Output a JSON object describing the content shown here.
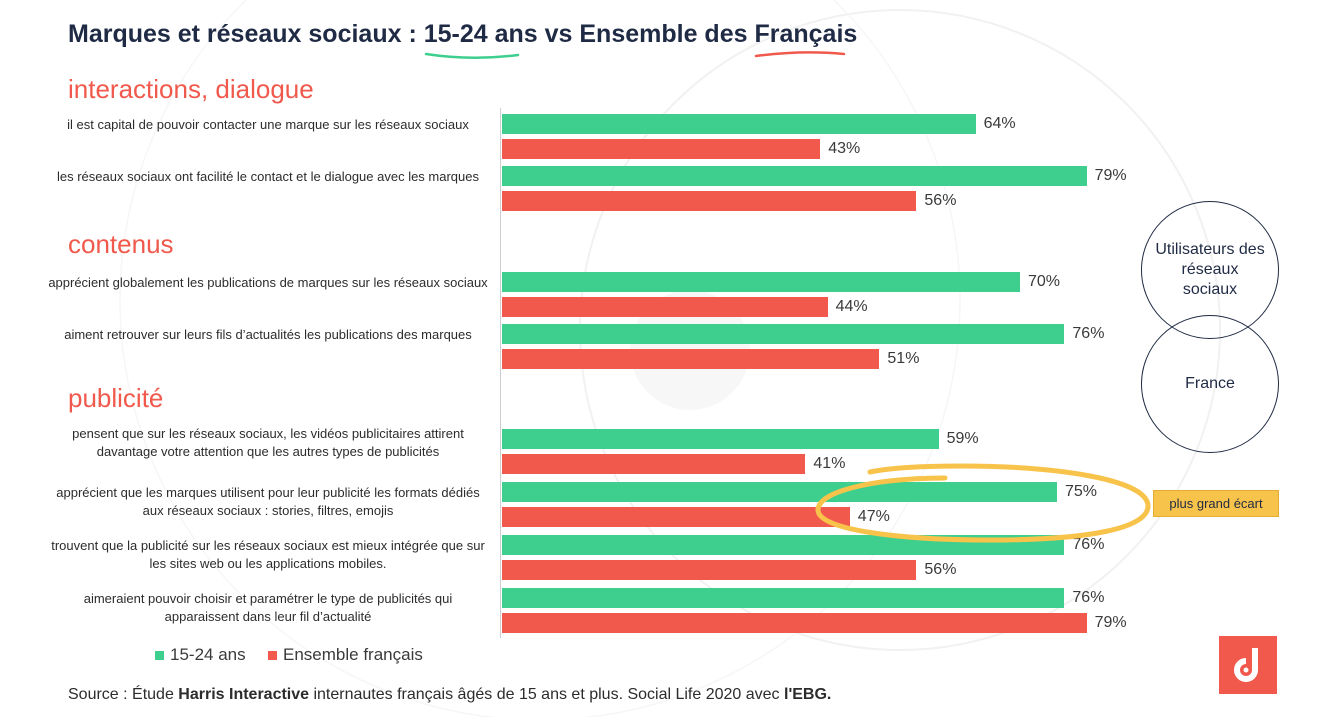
{
  "title": {
    "prefix": "Marques et réseaux sociaux  : ",
    "highlight1": "15-24 ans",
    "middle": " vs Ensemble des ",
    "highlight2": "Français"
  },
  "sections": {
    "s1": "interactions, dialogue",
    "s2": "contenus",
    "s3": "publicité"
  },
  "chart_data": {
    "type": "bar",
    "orientation": "horizontal",
    "categories": [
      "il est capital de pouvoir contacter une marque sur les réseaux sociaux",
      "les réseaux sociaux ont facilité le contact et le dialogue avec les marques",
      "apprécient globalement les publications de marques sur les réseaux sociaux",
      "aiment retrouver sur leurs fils d’actualités les publications des marques",
      "pensent que sur les réseaux sociaux, les vidéos publicitaires attirent davantage votre attention que les autres types de publicités",
      "apprécient que les marques utilisent pour leur publicité les formats dédiés aux réseaux sociaux : stories, filtres, emojis",
      "trouvent que la publicité sur les réseaux sociaux est mieux intégrée que sur les sites web ou les applications mobiles.",
      "aimeraient pouvoir choisir et paramétrer le type de publicités qui apparaissent dans leur fil d’actualité"
    ],
    "series": [
      {
        "name": "15-24 ans",
        "color": "#3ecf8e",
        "values": [
          64,
          79,
          70,
          76,
          59,
          75,
          76,
          76
        ]
      },
      {
        "name": "Ensemble français",
        "color": "#f0594c",
        "values": [
          43,
          56,
          44,
          51,
          41,
          47,
          56,
          79
        ]
      }
    ],
    "value_labels": {
      "green": [
        "64%",
        "79%",
        "70%",
        "76%",
        "59%",
        "75%",
        "76%",
        "76%"
      ],
      "red": [
        "43%",
        "56%",
        "44%",
        "51%",
        "41%",
        "47%",
        "56%",
        "79%"
      ]
    },
    "xlim": [
      0,
      100
    ],
    "annotation": "plus grand écart",
    "annotation_index": 5
  },
  "circles": {
    "top": "Utilisateurs des réseaux sociaux",
    "bottom": "France"
  },
  "legend": {
    "green": "15-24 ans",
    "red": "Ensemble français"
  },
  "source": {
    "part1": "Source : Étude ",
    "bold1": "Harris Interactive",
    "part2": " internautes français âgés de 15 ans et plus. Social Life 2020 avec ",
    "bold2": "l'EBG."
  },
  "colors": {
    "green": "#3ecf8e",
    "red": "#f0594c",
    "navy": "#1f2a44",
    "highlight": "#f8c34a"
  }
}
